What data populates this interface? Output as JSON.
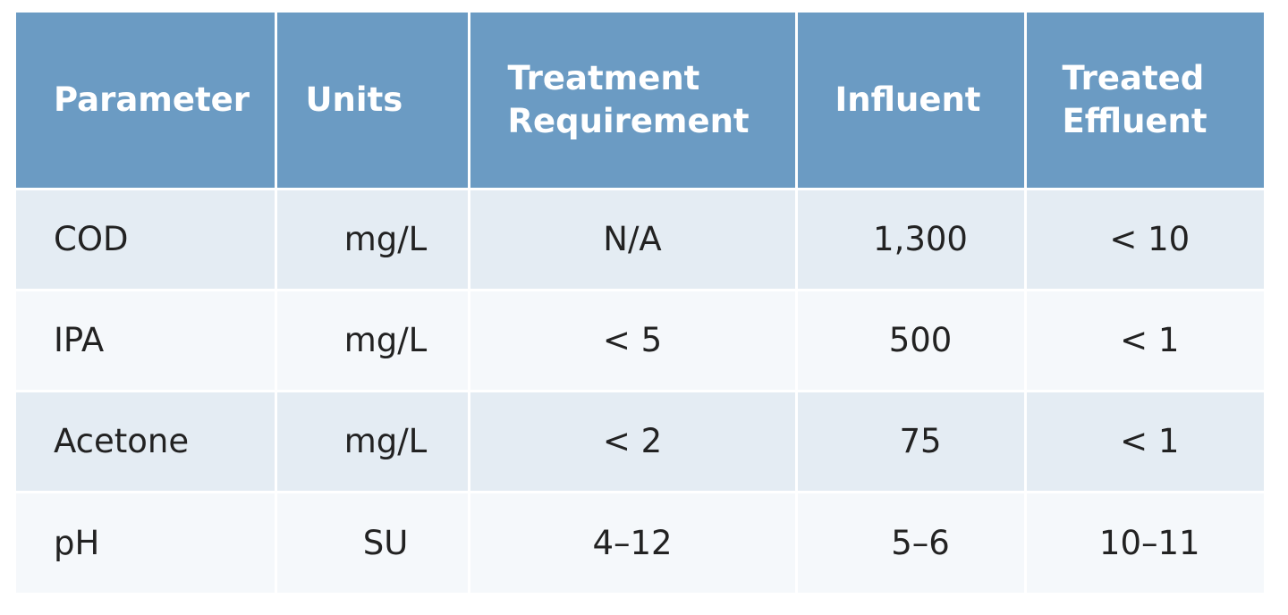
{
  "table": {
    "headers": [
      {
        "line1": "Parameter",
        "line2": ""
      },
      {
        "line1": "Units",
        "line2": ""
      },
      {
        "line1": "Treatment",
        "line2": "Requirement"
      },
      {
        "line1": "Influent",
        "line2": ""
      },
      {
        "line1": "Treated",
        "line2": "Effluent"
      }
    ],
    "rows": [
      [
        "COD",
        "mg/L",
        "N/A",
        "1,300",
        "< 10"
      ],
      [
        "IPA",
        "mg/L",
        "< 5",
        "500",
        "< 1"
      ],
      [
        "Acetone",
        "mg/L",
        "< 2",
        "75",
        "< 1"
      ],
      [
        "pH",
        "SU",
        "4–12",
        "5–6",
        "10–11"
      ]
    ]
  },
  "colors": {
    "header_bg": "#6b9bc3",
    "row_odd_bg": "#e4ecf3",
    "row_even_bg": "#f5f8fb"
  }
}
